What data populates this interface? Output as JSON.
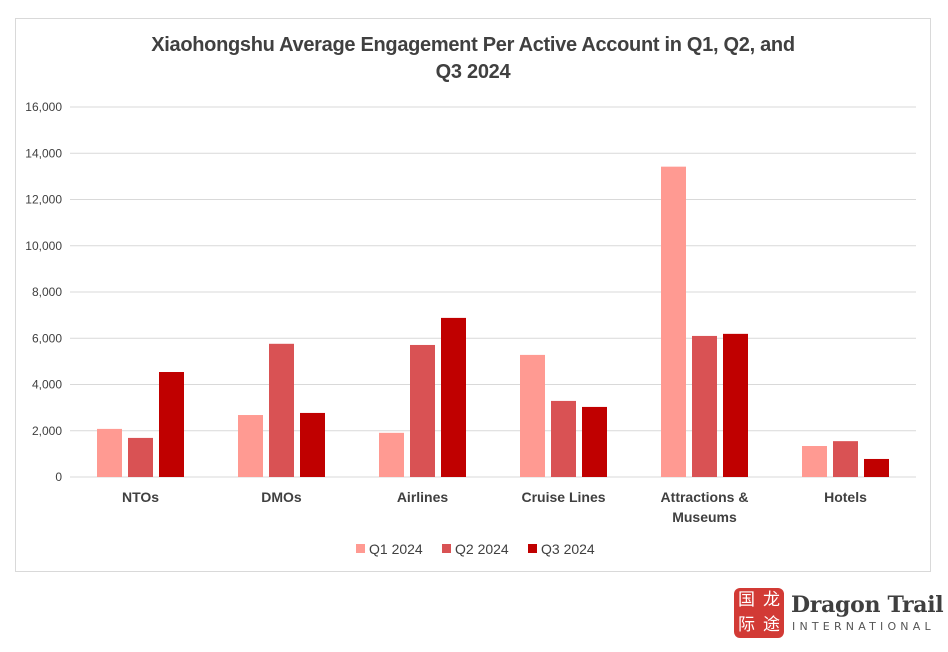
{
  "chart_data": {
    "type": "bar",
    "title_lines": [
      "Xiaohongshu Average Engagement Per Active Account in Q1, Q2, and",
      "Q3 2024"
    ],
    "title": "Xiaohongshu Average Engagement Per Active Account in Q1, Q2, and Q3 2024",
    "xlabel": "",
    "ylabel": "",
    "categories": [
      {
        "label_lines": [
          "NTOs"
        ]
      },
      {
        "label_lines": [
          "DMOs"
        ]
      },
      {
        "label_lines": [
          "Airlines"
        ]
      },
      {
        "label_lines": [
          "Cruise Lines"
        ]
      },
      {
        "label_lines": [
          "Attractions &",
          "Museums"
        ]
      },
      {
        "label_lines": [
          "Hotels"
        ]
      }
    ],
    "series": [
      {
        "name": "Q1 2024",
        "color": "#ff9a92",
        "values": [
          2080,
          2680,
          1910,
          5280,
          13420,
          1340
        ]
      },
      {
        "name": "Q2 2024",
        "color": "#d95254",
        "values": [
          1690,
          5760,
          5710,
          3290,
          6100,
          1550
        ]
      },
      {
        "name": "Q3 2024",
        "color": "#c00000",
        "values": [
          4540,
          2770,
          6880,
          3030,
          6190,
          780
        ]
      }
    ],
    "ylim": [
      0,
      16000
    ],
    "yticks": [
      0,
      2000,
      4000,
      6000,
      8000,
      10000,
      12000,
      14000,
      16000
    ],
    "ytick_labels": [
      "0",
      "2,000",
      "4,000",
      "6,000",
      "8,000",
      "10,000",
      "12,000",
      "14,000",
      "16,000"
    ],
    "grid": true,
    "legend_position": "bottom"
  },
  "logo": {
    "mark_chars": [
      "国",
      "龙",
      "际",
      "途"
    ],
    "name": "Dragon Trail",
    "subtitle": "INTERNATIONAL",
    "color": "#d23a35"
  }
}
